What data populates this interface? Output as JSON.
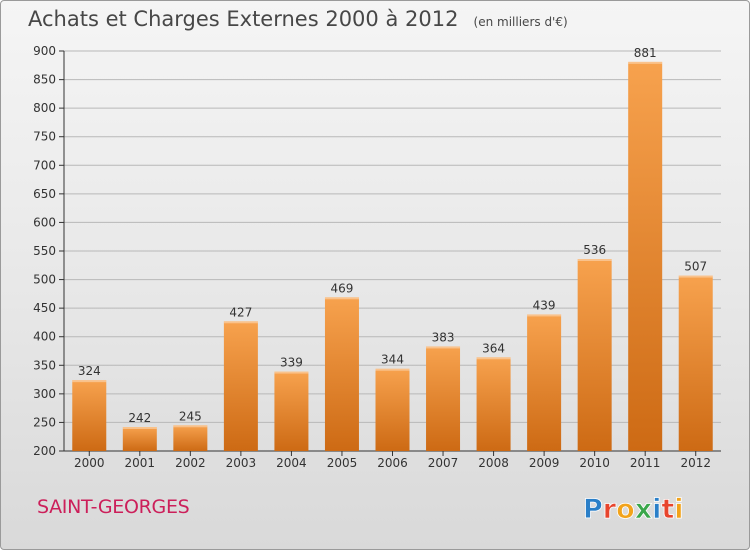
{
  "header": {
    "title": "Achats et Charges Externes 2000 à 2012",
    "unit": "(en milliers d'€)"
  },
  "footer": {
    "place": "SAINT-GEORGES",
    "logo_text": "Proxiti"
  },
  "colors": {
    "bar_light": "#f7a24e",
    "bar_dark": "#cd6a14",
    "axis": "#333333",
    "grid": "#b8b8b8",
    "place": "#cc1f5a"
  },
  "chart_data": {
    "type": "bar",
    "title": "Achats et Charges Externes 2000 à 2012",
    "subtitle": "(en milliers d'€)",
    "xlabel": "",
    "ylabel": "",
    "categories": [
      "2000",
      "2001",
      "2002",
      "2003",
      "2004",
      "2005",
      "2006",
      "2007",
      "2008",
      "2009",
      "2010",
      "2011",
      "2012"
    ],
    "values": [
      324,
      242,
      245,
      427,
      339,
      469,
      344,
      383,
      364,
      439,
      536,
      881,
      507
    ],
    "ylim": [
      200,
      900
    ],
    "yticks": [
      200,
      250,
      300,
      350,
      400,
      450,
      500,
      550,
      600,
      650,
      700,
      750,
      800,
      850,
      900
    ],
    "grid": true,
    "data_labels": true
  }
}
